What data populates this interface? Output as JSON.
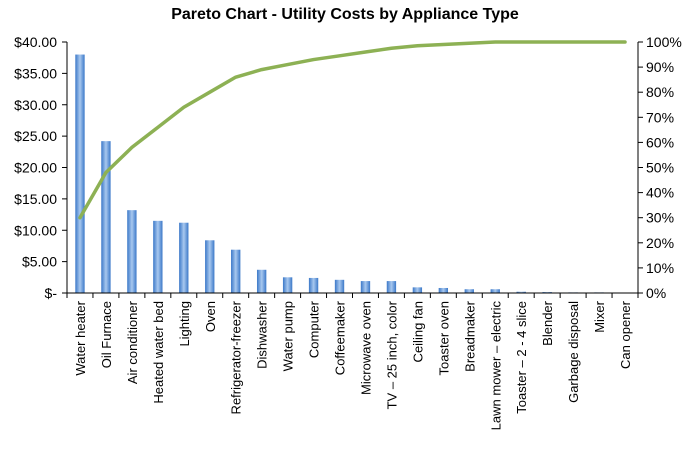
{
  "chart_data": {
    "type": "bar",
    "title": "Pareto Chart - Utility Costs by Appliance Type",
    "categories": [
      "Water heater",
      "Oil Furnace",
      "Air conditioner",
      "Heated water bed",
      "Lighting",
      "Oven",
      "Refrigerator-freezer",
      "Dishwasher",
      "Water pump",
      "Computer",
      "Coffeemaker",
      "Microwave oven",
      "TV – 25 inch, color",
      "Ceiling fan",
      "Toaster oven",
      "Breadmaker",
      "Lawn mower – electric",
      "Toaster – 2 - 4 slice",
      "Blender",
      "Garbage disposal",
      "Mixer",
      "Can opener"
    ],
    "series": [
      {
        "type": "bar",
        "axis": "left",
        "values": [
          38.0,
          24.2,
          13.2,
          11.5,
          11.2,
          8.4,
          6.9,
          3.7,
          2.5,
          2.4,
          2.1,
          1.9,
          1.9,
          0.9,
          0.8,
          0.6,
          0.6,
          0.2,
          0.15,
          0.1,
          0.1,
          0.05
        ]
      },
      {
        "type": "line",
        "axis": "right",
        "values": [
          30,
          48,
          58,
          66,
          74,
          80,
          86,
          89,
          91,
          93,
          94.5,
          96,
          97.5,
          98.5,
          99,
          99.5,
          100,
          100,
          100,
          100,
          100,
          100
        ]
      }
    ],
    "y_left": {
      "ylim": [
        0,
        40
      ],
      "ticks": [
        0,
        5,
        10,
        15,
        20,
        25,
        30,
        35,
        40
      ],
      "tick_labels": [
        "$-",
        "$5.00",
        "$10.00",
        "$15.00",
        "$20.00",
        "$25.00",
        "$30.00",
        "$35.00",
        "$40.00"
      ]
    },
    "y_right": {
      "ylim": [
        0,
        100
      ],
      "ticks": [
        0,
        10,
        20,
        30,
        40,
        50,
        60,
        70,
        80,
        90,
        100
      ],
      "tick_labels": [
        "0%",
        "10%",
        "20%",
        "30%",
        "40%",
        "50%",
        "60%",
        "70%",
        "80%",
        "90%",
        "100%"
      ]
    },
    "grid": false,
    "legend": "none",
    "colors": {
      "bar_top": "#a8c8ef",
      "bar_bottom": "#3b78c8",
      "line": "#8db154",
      "axis": "#000000"
    }
  }
}
